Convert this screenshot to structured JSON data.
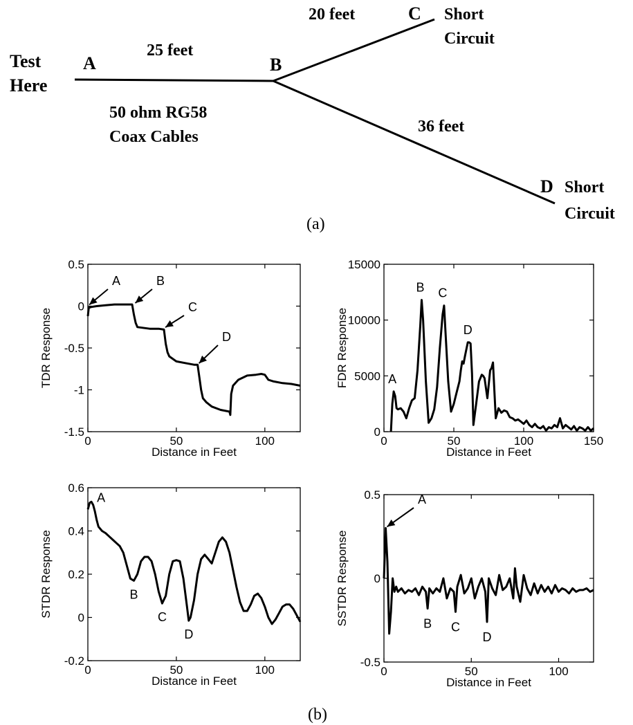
{
  "diagram": {
    "node_a": "A",
    "node_b": "B",
    "node_c": "C",
    "node_d": "D",
    "test_label_1": "Test",
    "test_label_2": "Here",
    "seg_ab_length": "25 feet",
    "seg_bc_length": "20 feet",
    "seg_bd_length": "36 feet",
    "cable_label_1": "50 ohm RG58",
    "cable_label_2": "Coax Cables",
    "c_end_1": "Short",
    "c_end_2": "Circuit",
    "d_end_1": "Short",
    "d_end_2": "Circuit",
    "caption": "(a)"
  },
  "caption_b": "(b)",
  "chart_data": [
    {
      "id": "tdr",
      "type": "line",
      "xlabel": "Distance in Feet",
      "ylabel": "TDR Response",
      "xlim": [
        0,
        120
      ],
      "ylim": [
        -1.5,
        0.5
      ],
      "xticks": [
        0,
        50,
        100
      ],
      "xtick_labels": [
        "0",
        "50",
        "100"
      ],
      "yticks": [
        -1.5,
        -1,
        -0.5,
        0,
        0.5
      ],
      "ytick_labels": [
        "-1.5",
        "-1",
        "-0.5",
        "0",
        "0.5"
      ],
      "x": [
        0,
        0.5,
        2,
        5,
        10,
        15,
        20,
        25,
        26,
        27,
        28,
        35,
        40,
        43,
        44,
        45,
        46,
        50,
        55,
        60,
        62,
        63,
        64,
        65,
        67,
        70,
        75,
        80,
        80.5,
        81,
        82,
        85,
        90,
        95,
        98,
        100,
        102,
        105,
        110,
        115,
        120
      ],
      "y": [
        -0.12,
        -0.02,
        -0.01,
        0,
        0.01,
        0.02,
        0.02,
        0.02,
        -0.1,
        -0.2,
        -0.25,
        -0.27,
        -0.27,
        -0.28,
        -0.45,
        -0.55,
        -0.6,
        -0.66,
        -0.68,
        -0.7,
        -0.7,
        -0.85,
        -1.0,
        -1.1,
        -1.15,
        -1.2,
        -1.24,
        -1.26,
        -1.3,
        -1.05,
        -0.95,
        -0.88,
        -0.83,
        -0.82,
        -0.81,
        -0.82,
        -0.88,
        -0.9,
        -0.92,
        -0.93,
        -0.95
      ],
      "annotations": [
        {
          "label": "A",
          "x": 0,
          "y": 0
        },
        {
          "label": "B",
          "x": 26,
          "y": 0.02
        },
        {
          "label": "C",
          "x": 43,
          "y": -0.27
        },
        {
          "label": "D",
          "x": 62,
          "y": -0.7
        }
      ]
    },
    {
      "id": "fdr",
      "type": "line",
      "xlabel": "Distance in Feet",
      "ylabel": "FDR Response",
      "xlim": [
        0,
        150
      ],
      "ylim": [
        0,
        15000
      ],
      "xticks": [
        0,
        50,
        100,
        150
      ],
      "xtick_labels": [
        "0",
        "50",
        "100",
        "150"
      ],
      "yticks": [
        0,
        5000,
        10000,
        15000
      ],
      "ytick_labels": [
        "0",
        "5000",
        "10000",
        "15000"
      ],
      "x": [
        5,
        6,
        7,
        8,
        9,
        10,
        12,
        14,
        16,
        18,
        20,
        22,
        24,
        26,
        27,
        28,
        30,
        32,
        34,
        36,
        38,
        40,
        42,
        43,
        44,
        46,
        48,
        50,
        52,
        54,
        55,
        56,
        57,
        58,
        60,
        61,
        62,
        63,
        64,
        66,
        68,
        70,
        71,
        72,
        74,
        76,
        77,
        78,
        80,
        82,
        84,
        86,
        88,
        90,
        92,
        94,
        96,
        98,
        100,
        102,
        104,
        106,
        108,
        110,
        112,
        114,
        116,
        118,
        120,
        122,
        124,
        126,
        128,
        130,
        132,
        134,
        136,
        138,
        140,
        142,
        144,
        146,
        148,
        150
      ],
      "y": [
        0,
        2500,
        3600,
        3200,
        2100,
        2000,
        2100,
        1800,
        1200,
        2100,
        2800,
        3000,
        5500,
        9500,
        11800,
        10000,
        4500,
        800,
        1200,
        2000,
        4000,
        7500,
        10500,
        11300,
        9000,
        4500,
        1800,
        2500,
        3500,
        4500,
        5500,
        6300,
        6100,
        6800,
        8000,
        8000,
        7900,
        5200,
        600,
        2500,
        4500,
        5100,
        5000,
        4800,
        3000,
        5500,
        5700,
        6200,
        1200,
        2100,
        1700,
        1900,
        1800,
        1300,
        1200,
        1000,
        1100,
        900,
        700,
        1000,
        600,
        400,
        700,
        400,
        300,
        500,
        100,
        400,
        300,
        600,
        400,
        1200,
        300,
        600,
        400,
        200,
        500,
        100,
        400,
        300,
        100,
        400,
        100,
        300
      ],
      "annotations": [
        {
          "label": "A",
          "x": 7,
          "y": 3600
        },
        {
          "label": "B",
          "x": 27,
          "y": 11800
        },
        {
          "label": "C",
          "x": 43,
          "y": 11300
        },
        {
          "label": "D",
          "x": 61,
          "y": 8000
        }
      ]
    },
    {
      "id": "stdr",
      "type": "line",
      "xlabel": "Distance in Feet",
      "ylabel": "STDR Response",
      "xlim": [
        0,
        120
      ],
      "ylim": [
        -0.2,
        0.6
      ],
      "xticks": [
        0,
        50,
        100
      ],
      "xtick_labels": [
        "0",
        "50",
        "100"
      ],
      "yticks": [
        -0.2,
        0,
        0.2,
        0.4,
        0.6
      ],
      "ytick_labels": [
        "-0.2",
        "0",
        "0.2",
        "0.4",
        "0.6"
      ],
      "x": [
        0,
        1,
        2,
        3,
        4,
        5,
        6,
        8,
        10,
        12,
        14,
        16,
        18,
        20,
        22,
        24,
        26,
        28,
        30,
        32,
        34,
        36,
        38,
        40,
        42,
        44,
        46,
        48,
        50,
        52,
        54,
        56,
        57,
        58,
        60,
        62,
        64,
        66,
        68,
        70,
        72,
        74,
        76,
        78,
        80,
        82,
        84,
        86,
        88,
        90,
        92,
        94,
        96,
        98,
        100,
        102,
        104,
        106,
        108,
        110,
        112,
        114,
        116,
        118,
        120
      ],
      "y": [
        0.5,
        0.53,
        0.535,
        0.52,
        0.49,
        0.45,
        0.42,
        0.4,
        0.39,
        0.375,
        0.36,
        0.345,
        0.33,
        0.3,
        0.24,
        0.18,
        0.17,
        0.2,
        0.26,
        0.28,
        0.28,
        0.26,
        0.2,
        0.12,
        0.065,
        0.1,
        0.2,
        0.26,
        0.265,
        0.26,
        0.18,
        0.05,
        -0.015,
        0.0,
        0.08,
        0.2,
        0.27,
        0.29,
        0.27,
        0.25,
        0.3,
        0.35,
        0.37,
        0.35,
        0.3,
        0.22,
        0.14,
        0.07,
        0.03,
        0.03,
        0.06,
        0.1,
        0.11,
        0.09,
        0.05,
        0.0,
        -0.03,
        -0.01,
        0.02,
        0.05,
        0.06,
        0.06,
        0.04,
        0.01,
        -0.02
      ],
      "annotations": [
        {
          "label": "A",
          "x": 2,
          "y": 0.535
        },
        {
          "label": "B",
          "x": 26,
          "y": 0.17
        },
        {
          "label": "C",
          "x": 42,
          "y": 0.065
        },
        {
          "label": "D",
          "x": 57,
          "y": -0.015
        }
      ]
    },
    {
      "id": "sstdr",
      "type": "line",
      "xlabel": "Distance in Feet",
      "ylabel": "SSTDR Response",
      "xlim": [
        0,
        120
      ],
      "ylim": [
        -0.5,
        0.5
      ],
      "xticks": [
        0,
        50,
        100
      ],
      "xtick_labels": [
        "0",
        "50",
        "100"
      ],
      "yticks": [
        -0.5,
        0,
        0.5
      ],
      "ytick_labels": [
        "-0.5",
        "0",
        "0.5"
      ],
      "x": [
        0,
        1,
        2,
        3,
        4,
        5,
        6,
        7,
        8,
        10,
        12,
        14,
        16,
        18,
        20,
        22,
        24,
        25,
        26,
        28,
        30,
        32,
        34,
        36,
        38,
        40,
        41,
        42,
        44,
        46,
        48,
        50,
        52,
        54,
        56,
        58,
        59,
        60,
        62,
        64,
        66,
        68,
        70,
        72,
        74,
        75,
        76,
        78,
        80,
        82,
        84,
        86,
        88,
        90,
        92,
        94,
        96,
        98,
        100,
        102,
        104,
        106,
        108,
        110,
        112,
        114,
        116,
        118,
        120
      ],
      "y": [
        0.0,
        0.3,
        0.1,
        -0.33,
        -0.2,
        0.0,
        -0.08,
        -0.05,
        -0.08,
        -0.06,
        -0.09,
        -0.07,
        -0.08,
        -0.06,
        -0.1,
        -0.05,
        -0.08,
        -0.18,
        -0.06,
        -0.09,
        -0.06,
        -0.08,
        0.0,
        -0.12,
        -0.06,
        -0.08,
        -0.2,
        -0.05,
        0.02,
        -0.09,
        -0.06,
        0.0,
        -0.12,
        -0.05,
        0.0,
        -0.08,
        -0.26,
        0.0,
        -0.06,
        -0.1,
        0.02,
        -0.07,
        -0.05,
        0.0,
        -0.12,
        0.06,
        -0.05,
        -0.14,
        0.02,
        -0.06,
        -0.1,
        -0.03,
        -0.09,
        -0.04,
        -0.08,
        -0.05,
        -0.09,
        -0.04,
        -0.08,
        -0.06,
        -0.07,
        -0.09,
        -0.06,
        -0.08,
        -0.07,
        -0.07,
        -0.06,
        -0.08,
        -0.07
      ],
      "annotations": [
        {
          "label": "A",
          "x": 1,
          "y": 0.3
        },
        {
          "label": "B",
          "x": 25,
          "y": -0.18
        },
        {
          "label": "C",
          "x": 41,
          "y": -0.2
        },
        {
          "label": "D",
          "x": 59,
          "y": -0.26
        }
      ]
    }
  ]
}
